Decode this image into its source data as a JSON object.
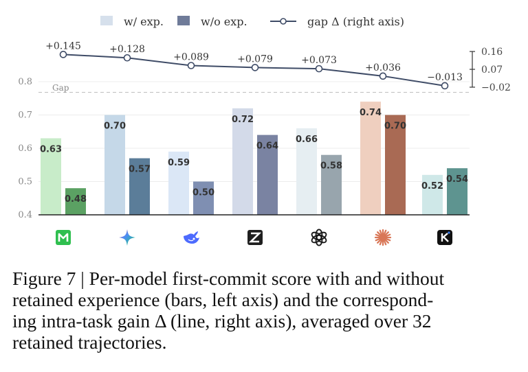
{
  "chart_data": {
    "type": "bar",
    "legend": {
      "with": "w/ exp.",
      "without": "w/o exp.",
      "gap": "gap Δ (right axis)"
    },
    "gap_axis_label": "Gap",
    "categories": [
      "m-logo",
      "gemini-logo",
      "deepseek-logo",
      "zhipu-logo",
      "openai-logo",
      "claude-logo",
      "kimi-logo"
    ],
    "series": [
      {
        "name": "w/ exp.",
        "values": [
          0.63,
          0.7,
          0.59,
          0.72,
          0.66,
          0.74,
          0.52
        ],
        "labels": [
          "0.63",
          "0.70",
          "0.59",
          "0.72",
          "0.66",
          "0.74",
          "0.52"
        ]
      },
      {
        "name": "w/o exp.",
        "values": [
          0.48,
          0.57,
          0.5,
          0.64,
          0.58,
          0.7,
          0.54
        ],
        "labels": [
          "0.48",
          "0.57",
          "0.50",
          "0.64",
          "0.58",
          "0.70",
          "0.54"
        ]
      }
    ],
    "gap": {
      "values": [
        0.145,
        0.128,
        0.089,
        0.079,
        0.073,
        0.036,
        -0.013
      ],
      "labels": [
        "+0.145",
        "+0.128",
        "+0.089",
        "+0.079",
        "+0.073",
        "+0.036",
        "−0.013"
      ]
    },
    "ylim": [
      0.4,
      0.84
    ],
    "yticks": [
      "0.4",
      "0.5",
      "0.6",
      "0.7",
      "0.8"
    ],
    "y2lim": [
      -0.02,
      0.16
    ],
    "y2ticks": [
      "0.16",
      "0.07",
      "−0.02"
    ],
    "colors": {
      "light": [
        "#c8ecc9",
        "#c5d8e8",
        "#dbe7f6",
        "#d3dae9",
        "#e6eef2",
        "#efcfbf",
        "#cfe8e8"
      ],
      "dark": [
        "#5ba163",
        "#5b7d99",
        "#7f8fb2",
        "#7a83a2",
        "#98a5ad",
        "#a96a54",
        "#5e9490"
      ],
      "line": "#3e4b66",
      "legend_with": "#d6e0ec",
      "legend_without": "#6f7b99"
    }
  },
  "caption": {
    "lines": [
      "Figure 7 | Per-model first-commit score with and without",
      "retained experience (bars, left axis) and the correspond-",
      "ing intra-task gain Δ (line, right axis), averaged over 32",
      "retained trajectories."
    ]
  }
}
